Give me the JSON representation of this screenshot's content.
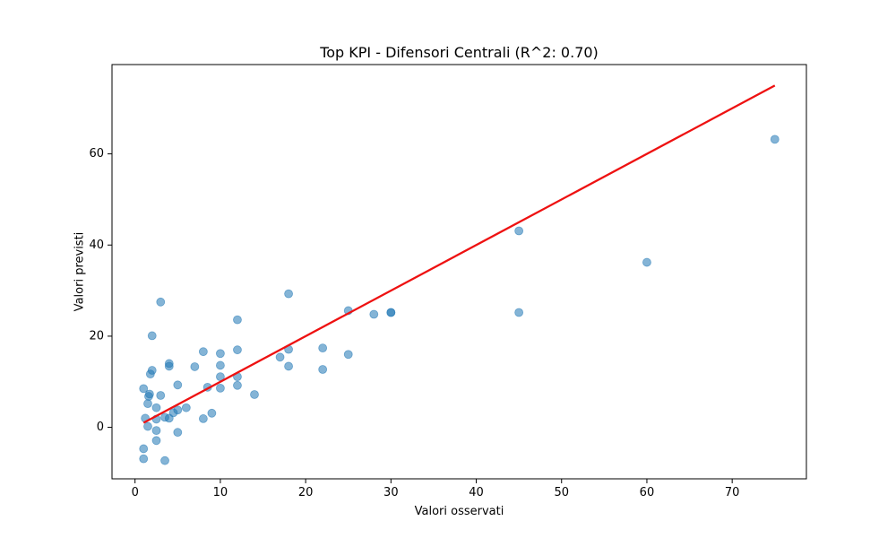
{
  "chart_data": {
    "type": "scatter",
    "title": "Top KPI - Difensori Centrali (R^2: 0.70)",
    "xlabel": "Valori osservati",
    "ylabel": "Valori previsti",
    "xlim": [
      -2.7,
      78.7
    ],
    "ylim": [
      -11.3,
      79.6
    ],
    "x_ticks": [
      0,
      10,
      20,
      30,
      40,
      50,
      60,
      70
    ],
    "y_ticks": [
      0,
      20,
      40,
      60
    ],
    "x_tick_labels": [
      "0",
      "10",
      "20",
      "30",
      "40",
      "50",
      "60",
      "70"
    ],
    "y_tick_labels": [
      "0",
      "20",
      "40",
      "60"
    ],
    "grid": false,
    "colors": {
      "points": "#1f77b4",
      "fit_line": "#ee1111"
    },
    "series": [
      {
        "kind": "points",
        "x": [
          1,
          1,
          1,
          1.2,
          1.5,
          1.5,
          1.6,
          1.7,
          1.8,
          2,
          2,
          2.5,
          2.5,
          2.5,
          2.5,
          3,
          3,
          3.5,
          3.5,
          4,
          4,
          4,
          4.5,
          5,
          5,
          5,
          6,
          7,
          8,
          8,
          8.5,
          9,
          10,
          10,
          10,
          10,
          12,
          12,
          12,
          12,
          14,
          17,
          18,
          18,
          18,
          22,
          22,
          25,
          25,
          28,
          30,
          30,
          45,
          45,
          60,
          75
        ],
        "y": [
          8.5,
          -4.7,
          -6.9,
          2,
          5.2,
          0.2,
          6.8,
          7.3,
          11.7,
          12.5,
          20.1,
          4.3,
          1.8,
          -0.7,
          -2.9,
          27.5,
          7,
          2.2,
          -7.3,
          14,
          13.4,
          2,
          3.2,
          9.3,
          3.8,
          -1.1,
          4.3,
          13.3,
          16.6,
          1.9,
          8.8,
          3.1,
          16.2,
          13.6,
          11.1,
          8.6,
          23.6,
          17,
          11.1,
          9.2,
          7.2,
          15.4,
          29.3,
          17.1,
          13.4,
          17.4,
          12.7,
          25.6,
          16,
          24.8,
          25.2,
          25.2,
          43.1,
          25.2,
          36.2,
          63.2
        ]
      },
      {
        "kind": "line",
        "x": [
          1,
          75
        ],
        "y": [
          1,
          75
        ]
      }
    ]
  }
}
